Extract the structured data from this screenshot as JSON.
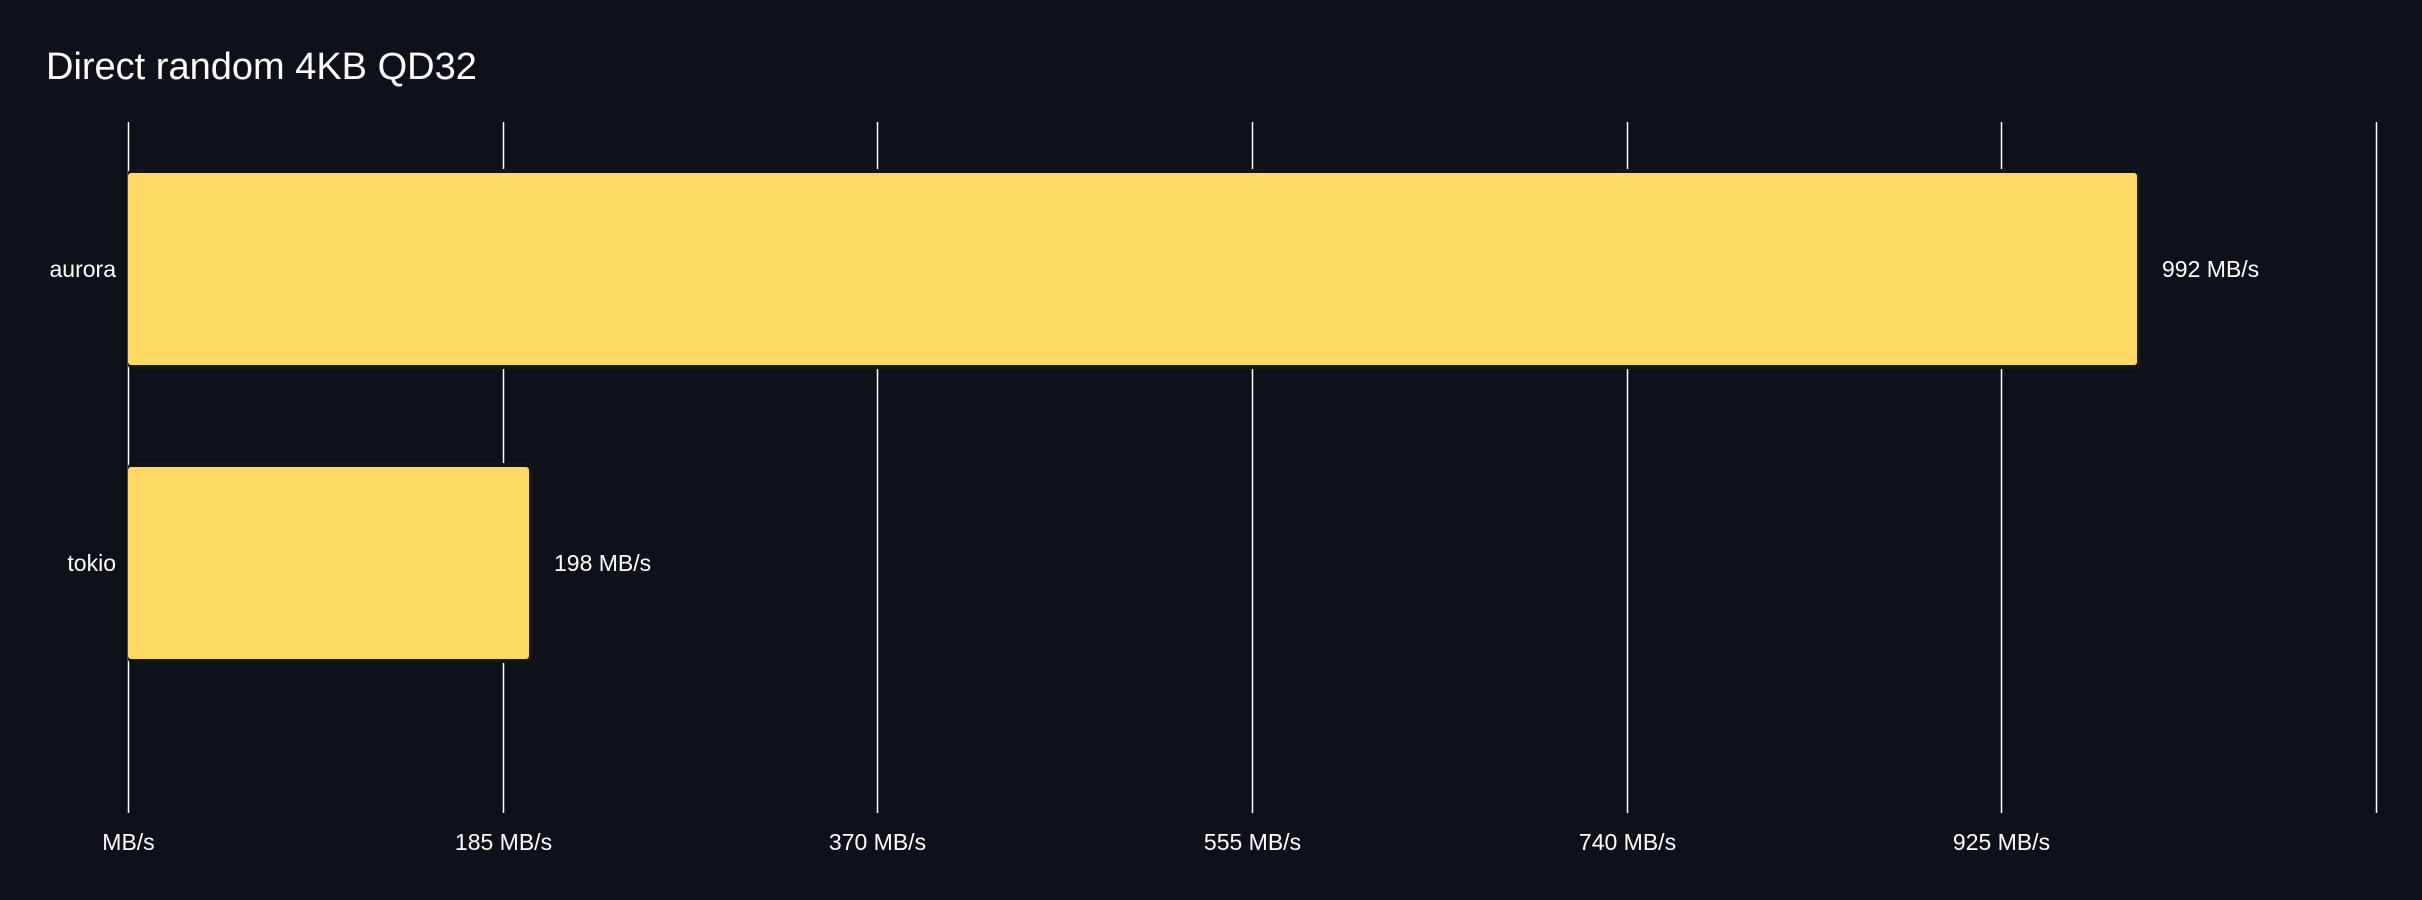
{
  "chart_data": {
    "type": "bar",
    "orientation": "horizontal",
    "title": "Direct random 4KB QD32",
    "xlabel": "",
    "ylabel": "",
    "categories": [
      "aurora",
      "tokio"
    ],
    "values": [
      992,
      198
    ],
    "value_labels": [
      "992 MB/s",
      "198 MB/s"
    ],
    "xlim": [
      0,
      1110
    ],
    "x_ticks": [
      0,
      185,
      370,
      555,
      740,
      925,
      1110
    ],
    "x_tick_labels": [
      "MB/s",
      "185 MB/s",
      "370 MB/s",
      "555 MB/s",
      "740 MB/s",
      "925 MB/s"
    ],
    "grid": true,
    "legend": "none"
  },
  "colors": {
    "background": "#0e1119",
    "bar": "#ffd966",
    "grid": "#ffffff",
    "text": "#ffffff"
  }
}
